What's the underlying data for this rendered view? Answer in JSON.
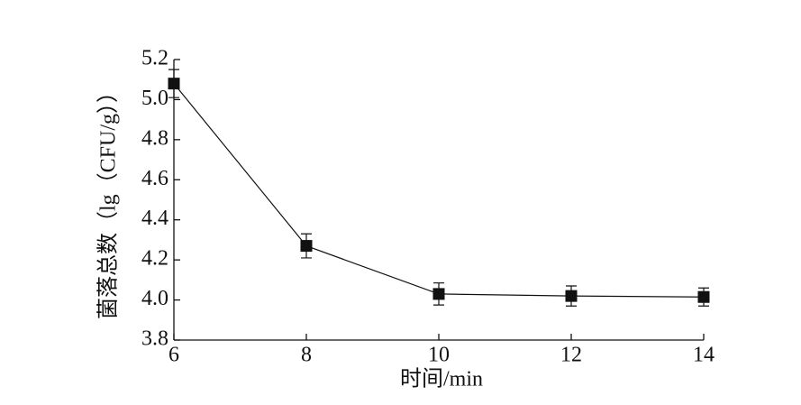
{
  "chart_data": {
    "type": "line",
    "x_label": "时间/min",
    "y_label": "菌落总数（lg（CFU/g））",
    "x": [
      6,
      8,
      10,
      12,
      14
    ],
    "series": [
      {
        "color": "#111111",
        "values": [
          5.08,
          4.27,
          4.03,
          4.02,
          4.015
        ],
        "errors": [
          0.07,
          0.06,
          0.055,
          0.05,
          0.045
        ]
      }
    ],
    "xlim": [
      6,
      14
    ],
    "xticks": [
      6,
      8,
      10,
      12,
      14
    ],
    "ylim": [
      3.8,
      5.2
    ],
    "yticks": [
      3.8,
      {
        "value": 4,
        "label": "4.0"
      },
      4.2,
      4.4,
      4.6,
      4.8,
      {
        "value": 5,
        "label": "5.0"
      },
      5.2
    ]
  }
}
